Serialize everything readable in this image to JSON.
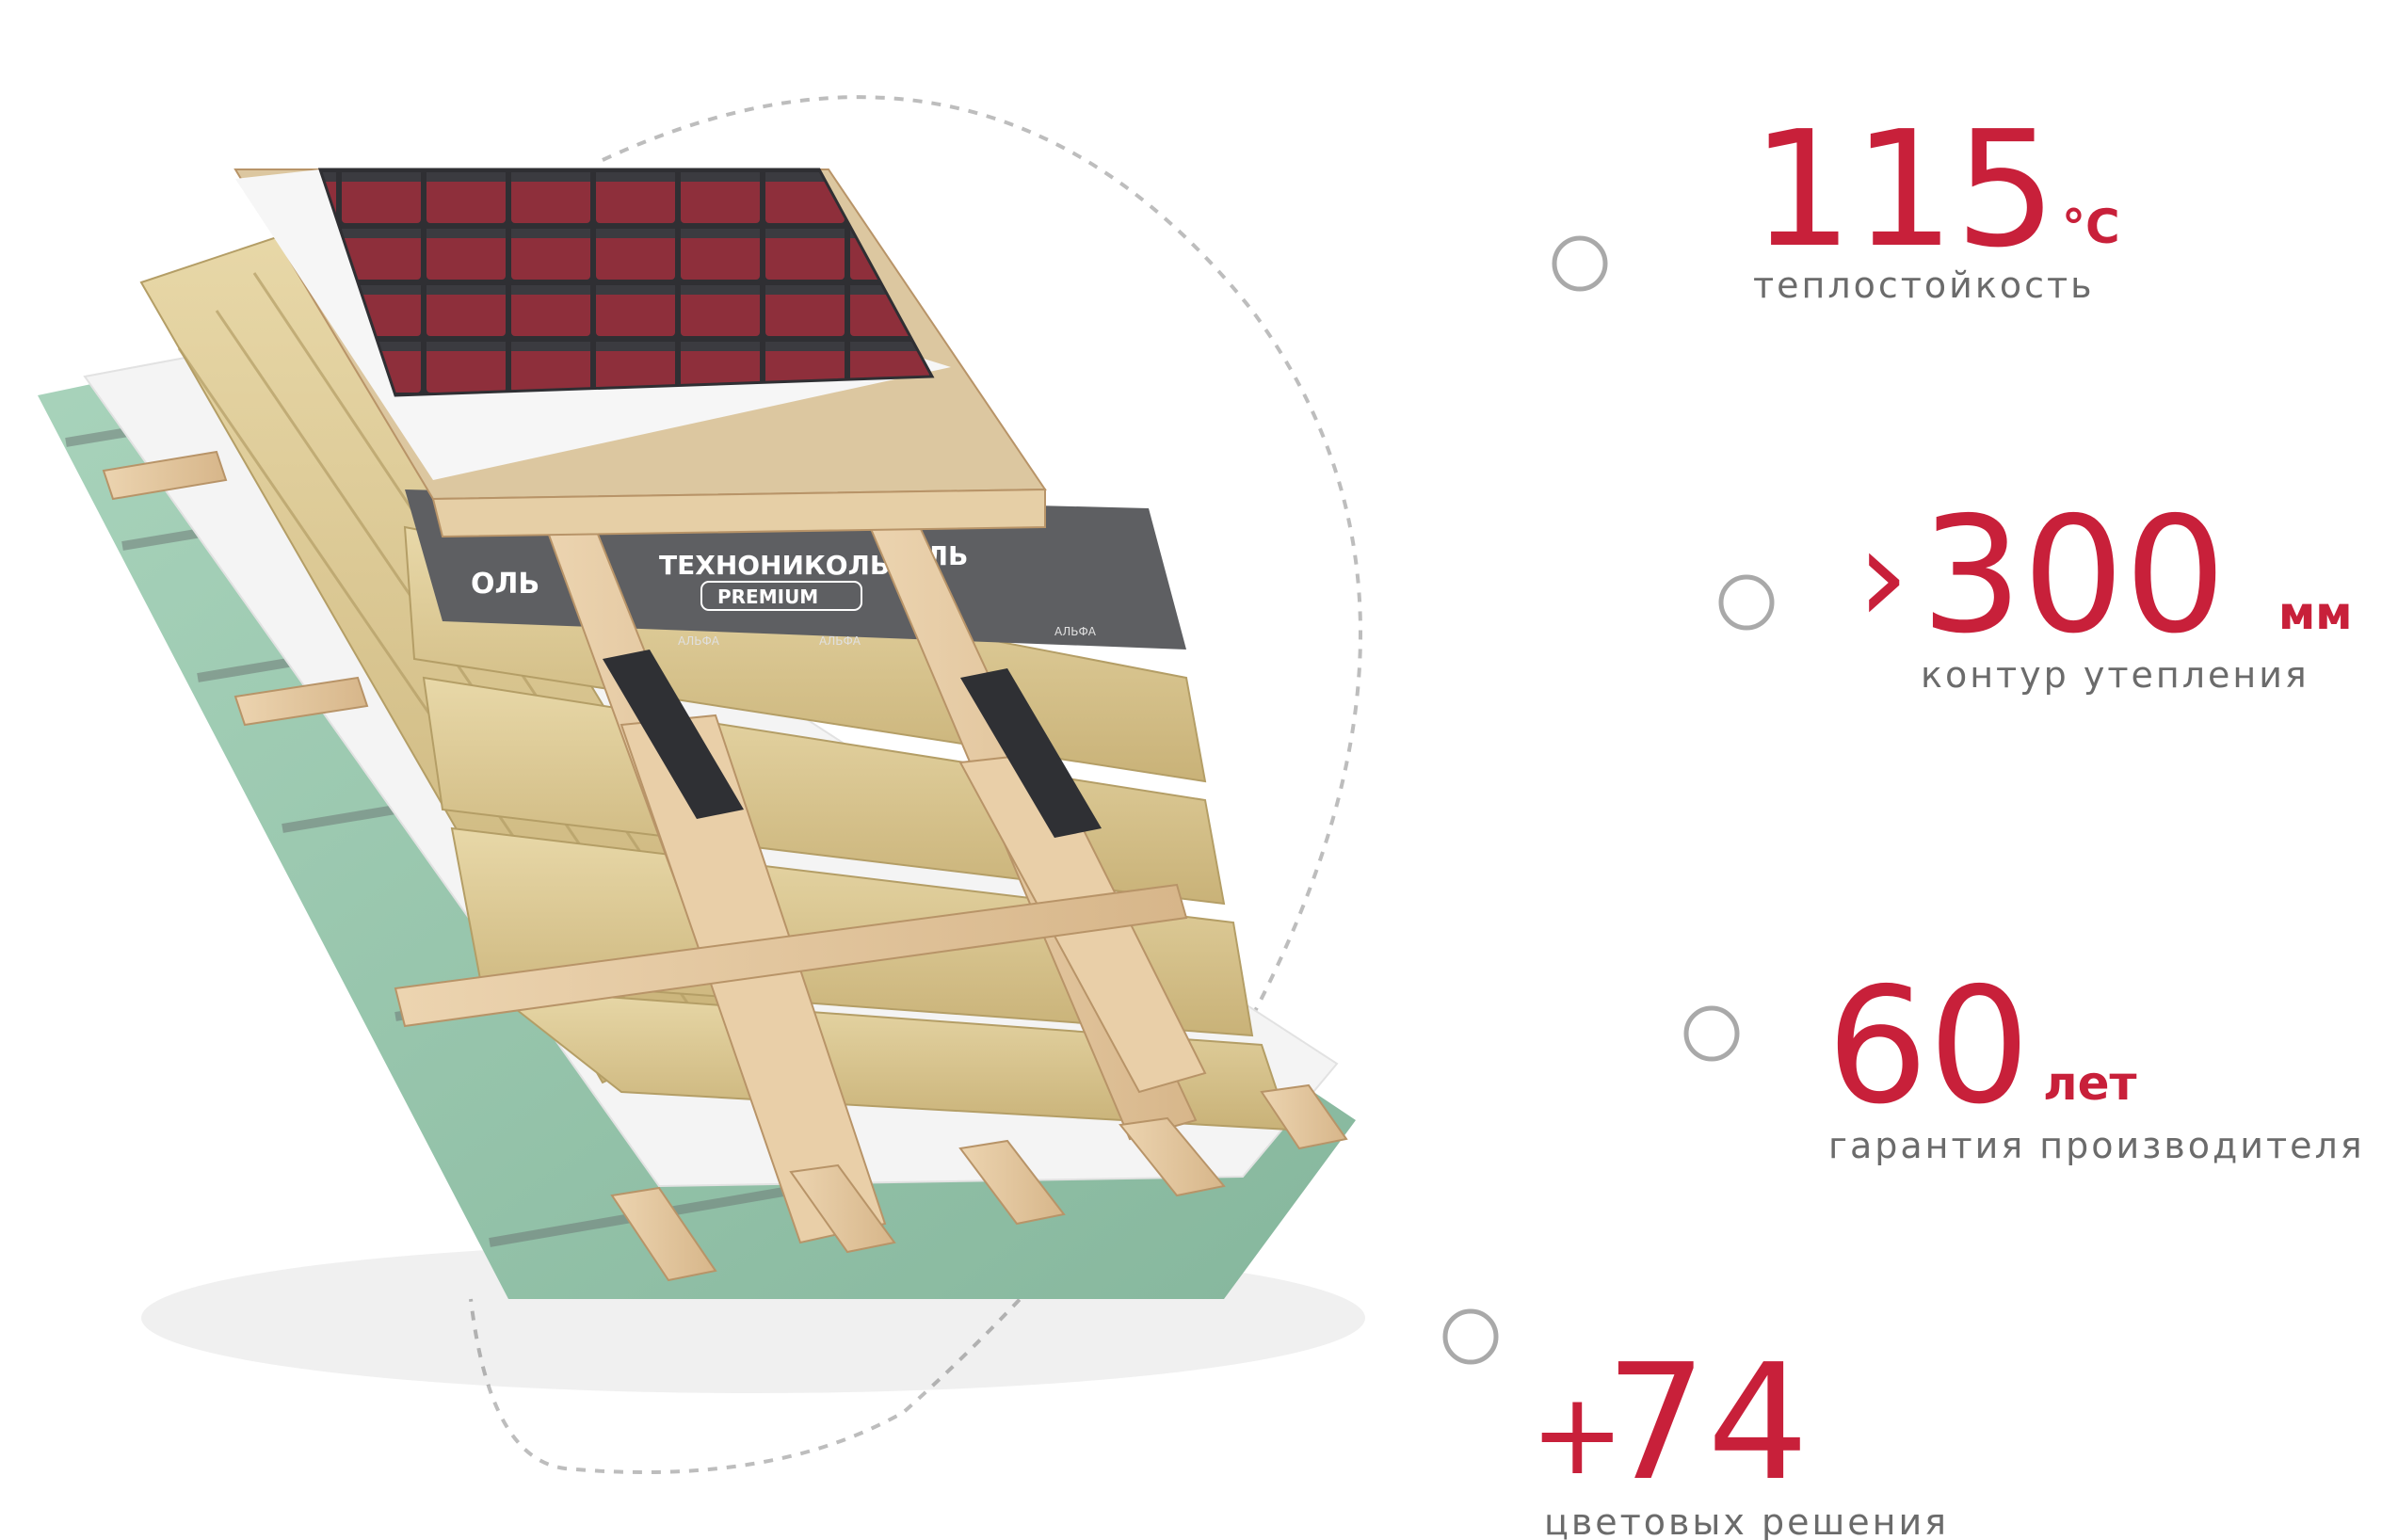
{
  "stats": [
    {
      "prefix": "",
      "value": "115",
      "unit": "°C",
      "label": "теплостойкость"
    },
    {
      "prefix": "›",
      "value": "300",
      "unit": "мм",
      "label": "контур утепления"
    },
    {
      "prefix": "",
      "value": "60",
      "unit": "лет",
      "label": "гарантия производителя"
    },
    {
      "prefix": "+",
      "value": "74",
      "unit": "",
      "label": "цветовых решения"
    }
  ],
  "membrane_brand": "ТЕХНОНИКОЛЬ",
  "membrane_grade": "PREMIUM",
  "membrane_text_left": "ОЛЬ",
  "membrane_text_right": "ОЛЬ",
  "membrane_small": [
    "АЛЬФА",
    "АЛЬФА",
    "АЛЬФА"
  ],
  "colors": {
    "accent": "#c8203a",
    "label_gray": "#6b6b6b",
    "dashed_arc": "#bdbdbd",
    "node_ring": "#a9a9a9",
    "shingle": "#8b2e3a",
    "wool": "#d8c58f",
    "wood": "#e4c9a2",
    "membrane": "#5e5f62",
    "base_board": "#9cc8b0"
  }
}
